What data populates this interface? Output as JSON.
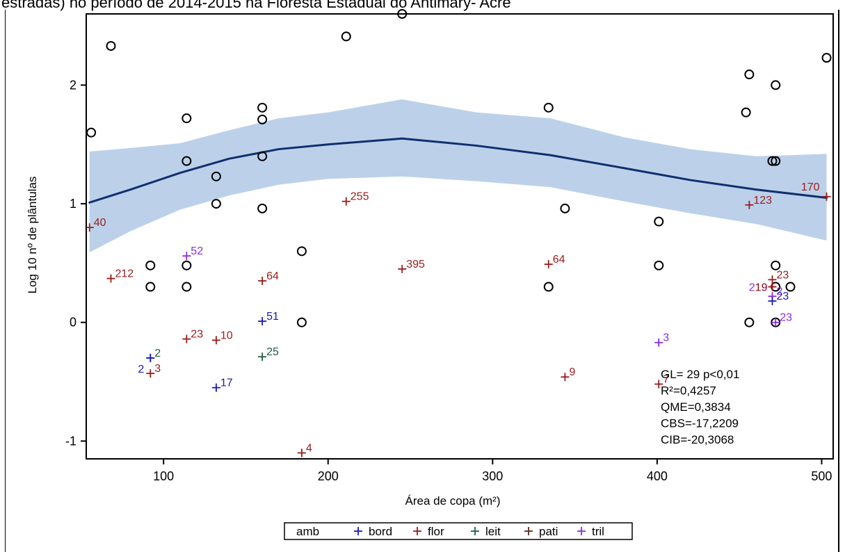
{
  "header": {
    "text": "estradas) no período de 2014-2015 na Floresta Estadual do Antimary- Acre"
  },
  "chart_data": {
    "type": "scatter",
    "xlabel": "Área de copa (m²)",
    "ylabel": "Log 10 nº de plântulas",
    "xlim": [
      53,
      507
    ],
    "ylim": [
      -1.15,
      2.6
    ],
    "xticks": [
      100,
      200,
      300,
      400,
      500
    ],
    "yticks": [
      -1,
      0,
      1,
      2
    ],
    "grid": false,
    "legend_position": "bottom",
    "legend": {
      "title": "amb",
      "entries": [
        {
          "name": "bord",
          "color": "#1a1ab3"
        },
        {
          "name": "flor",
          "color": "#9b1b1b"
        },
        {
          "name": "leit",
          "color": "#1f5f3f"
        },
        {
          "name": "pati",
          "color": "#5a2a1a"
        },
        {
          "name": "tril",
          "color": "#8a2be2"
        }
      ]
    },
    "observed_points": [
      [
        56,
        1.6
      ],
      [
        68,
        2.33
      ],
      [
        92,
        0.48
      ],
      [
        92,
        0.3
      ],
      [
        114,
        1.72
      ],
      [
        114,
        1.36
      ],
      [
        114,
        0.48
      ],
      [
        114,
        0.3
      ],
      [
        132,
        1.23
      ],
      [
        132,
        1.0
      ],
      [
        160,
        1.81
      ],
      [
        160,
        1.71
      ],
      [
        160,
        1.4
      ],
      [
        160,
        0.96
      ],
      [
        184,
        0.6
      ],
      [
        184,
        0.0
      ],
      [
        211,
        2.41
      ],
      [
        245,
        2.6
      ],
      [
        334,
        1.81
      ],
      [
        344,
        0.96
      ],
      [
        334,
        0.3
      ],
      [
        401,
        0.85
      ],
      [
        401,
        0.48
      ],
      [
        454,
        1.77
      ],
      [
        456,
        2.09
      ],
      [
        456,
        0.0
      ],
      [
        470,
        1.36
      ],
      [
        472,
        1.36
      ],
      [
        472,
        2.0
      ],
      [
        472,
        0.48
      ],
      [
        472,
        0.3
      ],
      [
        472,
        0.0
      ],
      [
        481,
        0.3
      ],
      [
        503,
        2.23
      ]
    ],
    "fit_line": {
      "x": [
        55,
        80,
        110,
        140,
        170,
        200,
        245,
        290,
        335,
        380,
        420,
        460,
        503
      ],
      "y": [
        1.01,
        1.12,
        1.26,
        1.38,
        1.46,
        1.5,
        1.55,
        1.49,
        1.41,
        1.3,
        1.2,
        1.12,
        1.05
      ]
    },
    "confidence_band": {
      "x": [
        55,
        80,
        110,
        140,
        170,
        200,
        245,
        290,
        335,
        380,
        420,
        460,
        503
      ],
      "lower": [
        0.59,
        0.77,
        0.95,
        1.07,
        1.16,
        1.21,
        1.23,
        1.19,
        1.14,
        1.02,
        0.92,
        0.83,
        0.69
      ],
      "upper": [
        1.44,
        1.47,
        1.51,
        1.62,
        1.72,
        1.77,
        1.88,
        1.77,
        1.72,
        1.56,
        1.46,
        1.4,
        1.42
      ]
    },
    "predicted_points": [
      {
        "x": 55,
        "y": 0.8,
        "label": "40",
        "group": "flor"
      },
      {
        "x": 68,
        "y": 0.37,
        "label": "212",
        "group": "flor"
      },
      {
        "x": 92,
        "y": -0.3,
        "label": "2",
        "group": "leit"
      },
      {
        "x": 92,
        "y": -0.3,
        "label": "2",
        "group": "bord",
        "label_side": "left-below"
      },
      {
        "x": 92,
        "y": -0.43,
        "label": "3",
        "group": "flor"
      },
      {
        "x": 114,
        "y": 0.56,
        "label": "52",
        "group": "tril"
      },
      {
        "x": 114,
        "y": -0.14,
        "label": "23",
        "group": "flor"
      },
      {
        "x": 132,
        "y": -0.15,
        "label": "10",
        "group": "flor"
      },
      {
        "x": 132,
        "y": -0.55,
        "label": "17",
        "group": "bord"
      },
      {
        "x": 160,
        "y": 0.35,
        "label": "64",
        "group": "flor"
      },
      {
        "x": 160,
        "y": 0.01,
        "label": "51",
        "group": "bord"
      },
      {
        "x": 160,
        "y": -0.29,
        "label": "25",
        "group": "leit"
      },
      {
        "x": 184,
        "y": -1.1,
        "label": "4",
        "group": "flor"
      },
      {
        "x": 211,
        "y": 1.02,
        "label": "255",
        "group": "flor"
      },
      {
        "x": 245,
        "y": 0.45,
        "label": "395",
        "group": "flor"
      },
      {
        "x": 334,
        "y": 0.49,
        "label": "64",
        "group": "flor"
      },
      {
        "x": 344,
        "y": -0.46,
        "label": "9",
        "group": "flor"
      },
      {
        "x": 401,
        "y": -0.17,
        "label": "3",
        "group": "tril"
      },
      {
        "x": 401,
        "y": -0.52,
        "label": "7",
        "group": "flor"
      },
      {
        "x": 456,
        "y": 0.99,
        "label": "123",
        "group": "flor"
      },
      {
        "x": 470,
        "y": 0.36,
        "label": "23",
        "group": "flor"
      },
      {
        "x": 470,
        "y": 0.3,
        "label": "219",
        "group": "tril",
        "label_side": "left"
      },
      {
        "x": 470,
        "y": 0.3,
        "label": "19",
        "group": "flor",
        "label_side": "left"
      },
      {
        "x": 470,
        "y": 0.22,
        "label": "2",
        "group": "tril"
      },
      {
        "x": 470,
        "y": 0.18,
        "label": "23",
        "group": "bord"
      },
      {
        "x": 472,
        "y": 0.0,
        "label": "23",
        "group": "tril"
      },
      {
        "x": 503,
        "y": 1.06,
        "label": "170",
        "group": "flor",
        "label_side": "left-above"
      }
    ],
    "stats_box": [
      "GL= 29 p<0,01",
      "R²=0,4257",
      "QME=0,3834",
      "CBS=-17,2209",
      "CIB=-20,3068"
    ]
  }
}
